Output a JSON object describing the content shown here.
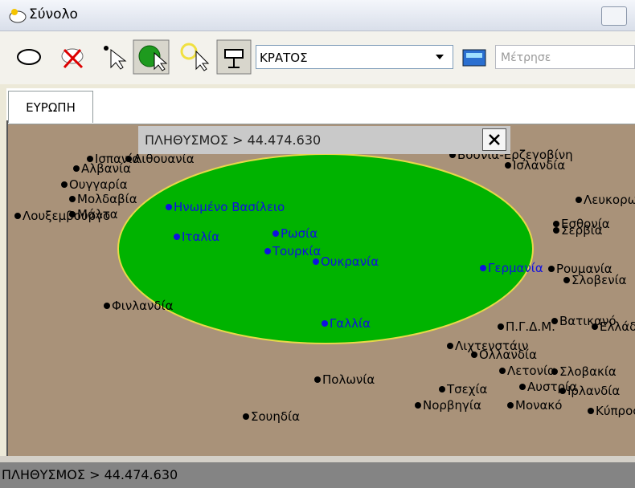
{
  "window": {
    "title": "Σύνολο"
  },
  "toolbar": {
    "layer_select": "ΚΡΑΤΟΣ",
    "measure_placeholder": "Μέτρησε"
  },
  "tabs": [
    "ΕΥΡΩΠΗ"
  ],
  "query": {
    "label": "ΠΛΗΘΥΣΜΟΣ > 44.474.630"
  },
  "map": {
    "selected_places": [
      "Ηνωμένο Βασίλειο",
      "Ιταλία",
      "Ρωσία",
      "Τουρκία",
      "Ουκρανία",
      "Γερμανία",
      "Γαλλία"
    ],
    "other_places": [
      "Ισπανία",
      "Λιθουανία",
      "Αλβανία",
      "Ουγγαρία",
      "Μολδαβία",
      "Λουξεμβούργο",
      "Μάλτα",
      "Φινλανδία",
      "Πολωνία",
      "Σουηδία",
      "Βοσνία-Ερζεγοβίνη",
      "Ισλανδία",
      "Εσθονία",
      "Σερβία",
      "Λευκορωσία",
      "Ρουμανία",
      "Σλοβενία",
      "Βατικανό",
      "Π.Γ.Δ.Μ.",
      "Ελλάδα",
      "Λιχτενστάιν",
      "Ολλανδία",
      "Λετονία",
      "Σλοβακία",
      "Τσεχία",
      "Αυστρία",
      "Ιρλανδία",
      "Νορβηγία",
      "Μονακό",
      "Κύπρος"
    ]
  },
  "status": {
    "text": "ΠΛΗΘΥΣΜΟΣ > 44.474.630"
  }
}
